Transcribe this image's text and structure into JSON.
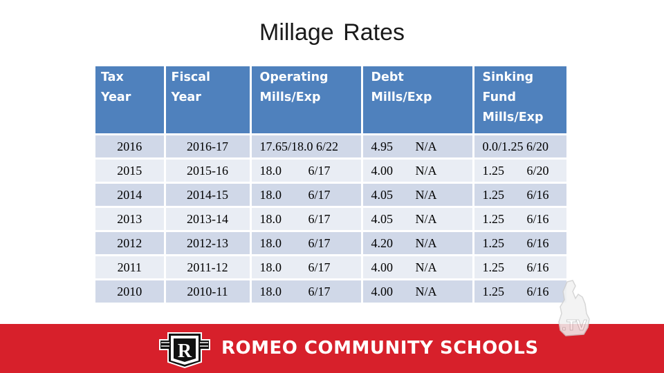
{
  "slide": {
    "title": "Millage Rates"
  },
  "table": {
    "headers": [
      [
        "Tax",
        "Year"
      ],
      [
        "Fiscal Year"
      ],
      [
        "Operating",
        "Mills/Exp"
      ],
      [
        "Debt",
        "Mills/Exp"
      ],
      [
        "Sinking",
        "Fund",
        "Mills/Exp"
      ]
    ],
    "rows": [
      {
        "tax_year": "2016",
        "fiscal_year": "2016-17",
        "operating_mills": "17.65/18.0",
        "operating_exp": "6/22",
        "debt_mills": "4.95",
        "debt_exp": "N/A",
        "sinking_mills": "0.0/1.25",
        "sinking_exp": "6/20"
      },
      {
        "tax_year": "2015",
        "fiscal_year": "2015-16",
        "operating_mills": "18.0",
        "operating_exp": "6/17",
        "debt_mills": "4.00",
        "debt_exp": "N/A",
        "sinking_mills": "1.25",
        "sinking_exp": "6/20"
      },
      {
        "tax_year": "2014",
        "fiscal_year": "2014-15",
        "operating_mills": "18.0",
        "operating_exp": "6/17",
        "debt_mills": "4.05",
        "debt_exp": "N/A",
        "sinking_mills": "1.25",
        "sinking_exp": "6/16"
      },
      {
        "tax_year": "2013",
        "fiscal_year": "2013-14",
        "operating_mills": "18.0",
        "operating_exp": "6/17",
        "debt_mills": "4.05",
        "debt_exp": "N/A",
        "sinking_mills": "1.25",
        "sinking_exp": "6/16"
      },
      {
        "tax_year": "2012",
        "fiscal_year": "2012-13",
        "operating_mills": "18.0",
        "operating_exp": "6/17",
        "debt_mills": "4.20",
        "debt_exp": "N/A",
        "sinking_mills": "1.25",
        "sinking_exp": "6/16"
      },
      {
        "tax_year": "2011",
        "fiscal_year": "2011-12",
        "operating_mills": "18.0",
        "operating_exp": "6/17",
        "debt_mills": "4.00",
        "debt_exp": "N/A",
        "sinking_mills": "1.25",
        "sinking_exp": "6/16"
      },
      {
        "tax_year": "2010",
        "fiscal_year": "2010-11",
        "operating_mills": "18.0",
        "operating_exp": "6/17",
        "debt_mills": "4.00",
        "debt_exp": "N/A",
        "sinking_mills": "1.25",
        "sinking_exp": "6/16"
      }
    ]
  },
  "banner": {
    "school_name": "ROMEO COMMUNITY SCHOOLS",
    "logo_letter": "R",
    "brand_color": "#d7202b"
  },
  "watermark": {
    "text": ".TV",
    "icon": "michigan-state-icon"
  },
  "colors": {
    "header_bg": "#4f81bd",
    "row_odd": "#d0d8e8",
    "row_even": "#e9edf4"
  }
}
